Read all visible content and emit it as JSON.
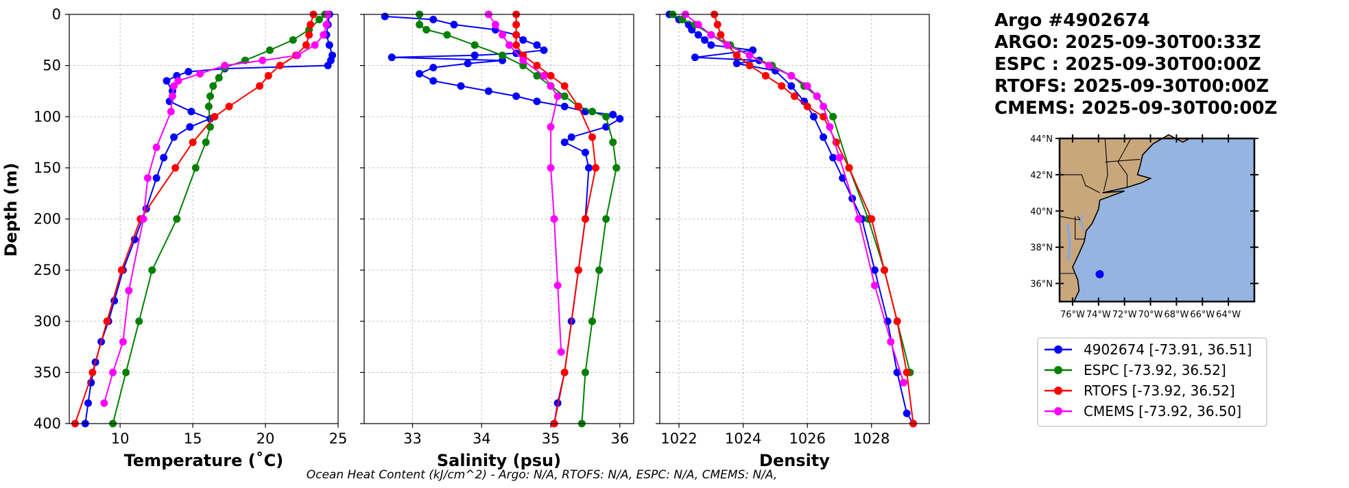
{
  "info": {
    "argo_id": "Argo #4902674",
    "argo_time": "ARGO: 2025-09-30T00:33Z",
    "espc_time": "ESPC : 2025-09-30T00:00Z",
    "rtofs_time": "RTOFS: 2025-09-30T00:00Z",
    "cmems_time": "CMEMS: 2025-09-30T00:00Z"
  },
  "footer": "Ocean Heat Content (kJ/cm^2) - Argo: N/A,  RTOFS: N/A,  ESPC: N/A,  CMEMS: N/A,",
  "colors": {
    "argo": "#0000ff",
    "espc": "#008000",
    "rtofs": "#ff0000",
    "cmems": "#ff00ff",
    "land": "#c9a77c",
    "ocean": "#95b4e0"
  },
  "legend": [
    {
      "label": "4902674 [-73.91, 36.51]",
      "color": "#0000ff"
    },
    {
      "label": "ESPC [-73.92, 36.52]",
      "color": "#008000"
    },
    {
      "label": "RTOFS [-73.92, 36.52]",
      "color": "#ff0000"
    },
    {
      "label": "CMEMS [-73.92, 36.50]",
      "color": "#ff00ff"
    }
  ],
  "map": {
    "lon_range": [
      -77,
      -62
    ],
    "lat_range": [
      35,
      44
    ],
    "lat_ticks": [
      {
        "value": 44,
        "label": "44°N"
      },
      {
        "value": 42,
        "label": "42°N"
      },
      {
        "value": 40,
        "label": "40°N"
      },
      {
        "value": 38,
        "label": "38°N"
      },
      {
        "value": 36,
        "label": "36°N"
      }
    ],
    "lon_ticks": [
      {
        "value": -76,
        "label": "76°W"
      },
      {
        "value": -74,
        "label": "74°W"
      },
      {
        "value": -72,
        "label": "72°W"
      },
      {
        "value": -70,
        "label": "70°W"
      },
      {
        "value": -68,
        "label": "68°W"
      },
      {
        "value": -66,
        "label": "66°W"
      },
      {
        "value": -64,
        "label": "64°W"
      }
    ],
    "float_position": {
      "lon": -73.91,
      "lat": 36.51
    }
  },
  "chart_data": [
    {
      "type": "line",
      "xlabel": "Temperature (˚C)",
      "ylabel": "Depth (m)",
      "xlim": [
        6.5,
        25
      ],
      "ylim": [
        400,
        0
      ],
      "xticks": [
        10,
        15,
        20,
        25
      ],
      "yticks": [
        0,
        50,
        100,
        150,
        200,
        250,
        300,
        350,
        400
      ],
      "series": [
        {
          "name": "4902674",
          "color": "#0000ff",
          "x": [
            24.4,
            24.3,
            24.2,
            24.4,
            24.6,
            24.5,
            24.3,
            17.2,
            14.7,
            13.9,
            13.2,
            13.6,
            13.4,
            14.9,
            16.2,
            14.8,
            13.7,
            13.0,
            12.5,
            11.8,
            11.0,
            10.2,
            9.6,
            9.2,
            8.7,
            8.3,
            8.0,
            7.8,
            7.6
          ],
          "y": [
            0,
            10,
            20,
            30,
            40,
            45,
            50,
            53,
            56,
            60,
            65,
            75,
            85,
            95,
            102,
            110,
            120,
            140,
            160,
            190,
            220,
            250,
            280,
            300,
            320,
            340,
            360,
            380,
            400
          ]
        },
        {
          "name": "ESPC",
          "color": "#008000",
          "x": [
            24.1,
            23.7,
            23.0,
            21.9,
            20.3,
            18.6,
            17.2,
            16.8,
            16.4,
            16.2,
            16.1,
            16.2,
            15.9,
            15.2,
            13.9,
            12.2,
            11.3,
            10.4,
            9.5
          ],
          "y": [
            0,
            5,
            15,
            25,
            35,
            45,
            52,
            62,
            70,
            80,
            90,
            110,
            125,
            150,
            200,
            250,
            300,
            350,
            400
          ]
        },
        {
          "name": "RTOFS",
          "color": "#ff0000",
          "x": [
            23.3,
            23.1,
            23.0,
            22.8,
            22.1,
            21.0,
            20.2,
            19.6,
            17.5,
            16.5,
            15.0,
            13.8,
            11.4,
            10.1,
            9.1,
            8.1,
            6.9
          ],
          "y": [
            0,
            10,
            20,
            30,
            40,
            50,
            60,
            70,
            90,
            100,
            125,
            150,
            200,
            250,
            300,
            350,
            400
          ]
        },
        {
          "name": "CMEMS",
          "color": "#ff00ff",
          "x": [
            24.3,
            24.2,
            24.0,
            23.4,
            22.2,
            19.8,
            17.2,
            15.5,
            14.0,
            13.7,
            13.6,
            13.5,
            12.5,
            11.9,
            11.6,
            10.6,
            10.2,
            9.5,
            8.9
          ],
          "y": [
            0,
            10,
            20,
            30,
            40,
            45,
            50,
            58,
            65,
            70,
            80,
            95,
            130,
            160,
            200,
            270,
            320,
            350,
            380
          ]
        }
      ]
    },
    {
      "type": "line",
      "xlabel": "Salinity (psu)",
      "xlim": [
        32.3,
        36.2
      ],
      "ylim": [
        400,
        0
      ],
      "xticks": [
        33,
        34,
        35,
        36
      ],
      "series": [
        {
          "name": "4902674",
          "color": "#0000ff",
          "x": [
            32.6,
            33.3,
            33.6,
            34.2,
            34.5,
            34.6,
            34.8,
            34.9,
            34.5,
            33.9,
            32.7,
            34.3,
            33.8,
            33.3,
            33.1,
            33.3,
            33.7,
            34.1,
            34.5,
            34.8,
            35.2,
            35.5,
            35.9,
            36.0,
            35.8,
            35.3,
            35.2,
            35.5,
            35.55,
            35.5,
            35.4,
            35.3,
            35.2,
            35.1,
            35.05
          ],
          "y": [
            2,
            5,
            10,
            15,
            20,
            25,
            30,
            35,
            38,
            40,
            42,
            45,
            48,
            52,
            58,
            65,
            70,
            75,
            80,
            85,
            90,
            95,
            98,
            102,
            110,
            120,
            125,
            135,
            150,
            200,
            250,
            300,
            350,
            380,
            400
          ]
        },
        {
          "name": "ESPC",
          "color": "#008000",
          "x": [
            33.1,
            33.1,
            33.2,
            33.5,
            33.9,
            34.3,
            34.6,
            34.8,
            35.0,
            35.2,
            35.4,
            35.6,
            35.8,
            35.9,
            35.95,
            35.8,
            35.7,
            35.6,
            35.5,
            35.45
          ],
          "y": [
            0,
            10,
            15,
            20,
            30,
            40,
            50,
            60,
            70,
            80,
            90,
            95,
            100,
            125,
            150,
            200,
            250,
            300,
            350,
            400
          ]
        },
        {
          "name": "RTOFS",
          "color": "#ff0000",
          "x": [
            34.5,
            34.5,
            34.5,
            34.5,
            34.6,
            34.8,
            35.0,
            35.2,
            35.4,
            35.6,
            35.65,
            35.5,
            35.4,
            35.2,
            35.05
          ],
          "y": [
            0,
            10,
            20,
            30,
            40,
            50,
            60,
            70,
            90,
            120,
            150,
            200,
            250,
            350,
            400
          ]
        },
        {
          "name": "CMEMS",
          "color": "#ff00ff",
          "x": [
            34.1,
            34.2,
            34.3,
            34.4,
            34.6,
            34.9,
            35.0,
            35.1,
            35.0,
            35.0,
            35.05,
            35.1,
            35.15
          ],
          "y": [
            0,
            10,
            20,
            30,
            45,
            60,
            70,
            80,
            110,
            150,
            200,
            265,
            330
          ]
        }
      ]
    },
    {
      "type": "line",
      "xlabel": "Density",
      "xlim": [
        1021.4,
        1029.8
      ],
      "ylim": [
        400,
        0
      ],
      "xticks": [
        1022,
        1024,
        1026,
        1028
      ],
      "series": [
        {
          "name": "4902674",
          "color": "#0000ff",
          "x": [
            1021.7,
            1022.0,
            1022.3,
            1022.4,
            1022.6,
            1022.8,
            1023.0,
            1024.3,
            1022.5,
            1024.5,
            1023.8,
            1025.0,
            1025.5,
            1025.9,
            1026.2,
            1026.5,
            1026.8,
            1027.1,
            1027.4,
            1027.7,
            1028.1,
            1028.5,
            1028.8,
            1029.1,
            1029.3
          ],
          "y": [
            0,
            5,
            10,
            15,
            20,
            25,
            30,
            35,
            42,
            45,
            48,
            55,
            70,
            85,
            100,
            120,
            140,
            160,
            180,
            200,
            250,
            300,
            350,
            390,
            400
          ]
        },
        {
          "name": "ESPC",
          "color": "#008000",
          "x": [
            1021.8,
            1022.1,
            1022.5,
            1023.0,
            1023.6,
            1024.2,
            1024.9,
            1025.5,
            1025.9,
            1026.3,
            1026.8,
            1027.3,
            1027.9,
            1028.4,
            1028.8,
            1029.2
          ],
          "y": [
            0,
            5,
            10,
            20,
            30,
            40,
            50,
            60,
            70,
            80,
            100,
            150,
            200,
            250,
            300,
            350
          ]
        },
        {
          "name": "RTOFS",
          "color": "#ff0000",
          "x": [
            1023.1,
            1023.2,
            1023.3,
            1023.5,
            1023.8,
            1024.2,
            1024.7,
            1025.2,
            1025.6,
            1026.0,
            1026.5,
            1026.9,
            1027.3,
            1028.0,
            1028.4,
            1028.8,
            1029.1,
            1029.3
          ],
          "y": [
            0,
            10,
            20,
            30,
            40,
            50,
            60,
            70,
            80,
            90,
            100,
            125,
            150,
            200,
            250,
            300,
            350,
            400
          ]
        },
        {
          "name": "CMEMS",
          "color": "#ff00ff",
          "x": [
            1022.2,
            1022.6,
            1023.0,
            1023.5,
            1024.2,
            1024.8,
            1025.5,
            1026.0,
            1026.3,
            1026.5,
            1026.7,
            1027.0,
            1027.6,
            1028.1,
            1028.6,
            1029.0
          ],
          "y": [
            0,
            10,
            20,
            30,
            40,
            50,
            60,
            70,
            80,
            90,
            110,
            140,
            200,
            265,
            320,
            360
          ]
        }
      ]
    }
  ]
}
